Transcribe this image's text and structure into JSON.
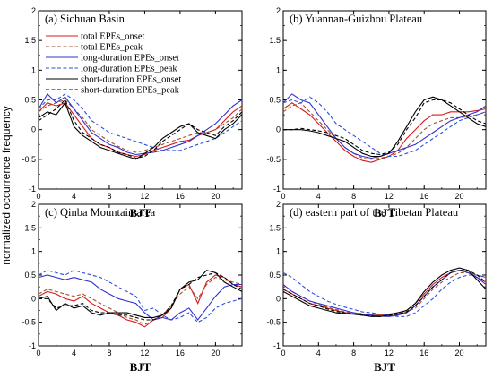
{
  "figure": {
    "ylabel": "normalized occurrence frequency"
  },
  "chart_data": [
    {
      "type": "line",
      "title": "(a) Sichuan Basin",
      "xlabel": "BJT",
      "ylabel": "normalized occurrence frequency",
      "xlim": [
        0,
        23
      ],
      "ylim": [
        -1,
        2
      ],
      "xticks": [
        0,
        4,
        8,
        12,
        16,
        20
      ],
      "yticks": [
        -1,
        -0.5,
        0,
        0.5,
        1,
        1.5,
        2
      ],
      "legend": "top-left",
      "x": [
        0,
        1,
        2,
        3,
        4,
        5,
        6,
        7,
        8,
        9,
        10,
        11,
        12,
        13,
        14,
        15,
        16,
        17,
        18,
        19,
        20,
        21,
        22,
        23
      ],
      "series": [
        {
          "name": "total EPEs_onset",
          "color": "#d7191c",
          "dash": "solid",
          "values": [
            0.3,
            0.45,
            0.4,
            0.45,
            0.25,
            0.05,
            -0.15,
            -0.25,
            -0.3,
            -0.38,
            -0.42,
            -0.45,
            -0.42,
            -0.35,
            -0.3,
            -0.25,
            -0.2,
            -0.18,
            -0.1,
            -0.05,
            0.0,
            0.15,
            0.3,
            0.4
          ]
        },
        {
          "name": "total EPEs_peak",
          "color": "#a0522d",
          "dash": "dash",
          "values": [
            0.3,
            0.4,
            0.45,
            0.5,
            0.35,
            0.2,
            0.0,
            -0.1,
            -0.2,
            -0.28,
            -0.35,
            -0.38,
            -0.35,
            -0.3,
            -0.25,
            -0.2,
            -0.15,
            -0.1,
            -0.05,
            -0.05,
            0.0,
            0.1,
            0.2,
            0.35
          ]
        },
        {
          "name": "long-duration EPEs_onset",
          "color": "#3030d0",
          "dash": "solid",
          "values": [
            0.35,
            0.6,
            0.45,
            0.55,
            0.35,
            0.15,
            -0.05,
            -0.15,
            -0.25,
            -0.3,
            -0.38,
            -0.42,
            -0.4,
            -0.38,
            -0.35,
            -0.3,
            -0.25,
            -0.2,
            -0.1,
            0.0,
            0.1,
            0.25,
            0.4,
            0.5
          ]
        },
        {
          "name": "long-duration EPEs_peak",
          "color": "#2b50d8",
          "dash": "dash",
          "values": [
            0.35,
            0.5,
            0.5,
            0.6,
            0.5,
            0.35,
            0.15,
            0.05,
            -0.05,
            -0.1,
            -0.15,
            -0.2,
            -0.25,
            -0.3,
            -0.35,
            -0.35,
            -0.35,
            -0.3,
            -0.25,
            -0.2,
            -0.15,
            -0.05,
            0.05,
            0.15
          ]
        },
        {
          "name": "short-duration EPEs_onset",
          "color": "#000000",
          "dash": "solid",
          "values": [
            0.2,
            0.3,
            0.25,
            0.45,
            0.05,
            -0.1,
            -0.2,
            -0.3,
            -0.35,
            -0.4,
            -0.45,
            -0.5,
            -0.4,
            -0.3,
            -0.15,
            -0.05,
            0.05,
            0.1,
            -0.05,
            -0.1,
            -0.15,
            0.0,
            0.1,
            0.25
          ]
        },
        {
          "name": "short-duration EPEs_peak",
          "color": "#000000",
          "dash": "dash",
          "values": [
            0.15,
            0.25,
            0.35,
            0.5,
            0.15,
            -0.05,
            -0.15,
            -0.25,
            -0.3,
            -0.38,
            -0.42,
            -0.48,
            -0.45,
            -0.35,
            -0.2,
            -0.1,
            0.0,
            0.1,
            0.0,
            -0.05,
            -0.1,
            0.05,
            0.15,
            0.3
          ]
        }
      ]
    },
    {
      "type": "line",
      "title": "(b) Yuannan-Guizhou Plateau",
      "xlabel": "BJT",
      "xlim": [
        0,
        23
      ],
      "ylim": [
        -1,
        2
      ],
      "xticks": [
        0,
        4,
        8,
        12,
        16,
        20
      ],
      "yticks": [
        -1,
        -0.5,
        0,
        0.5,
        1,
        1.5,
        2
      ],
      "x": [
        0,
        1,
        2,
        3,
        4,
        5,
        6,
        7,
        8,
        9,
        10,
        11,
        12,
        13,
        14,
        15,
        16,
        17,
        18,
        19,
        20,
        21,
        22,
        23
      ],
      "series": [
        {
          "name": "total EPEs_onset",
          "color": "#d7191c",
          "dash": "solid",
          "values": [
            0.35,
            0.45,
            0.35,
            0.25,
            0.1,
            -0.05,
            -0.2,
            -0.35,
            -0.45,
            -0.52,
            -0.55,
            -0.5,
            -0.45,
            -0.35,
            -0.15,
            0.0,
            0.15,
            0.25,
            0.25,
            0.3,
            0.3,
            0.3,
            0.32,
            0.35
          ]
        },
        {
          "name": "total EPEs_peak",
          "color": "#a0522d",
          "dash": "dash",
          "values": [
            0.3,
            0.4,
            0.45,
            0.3,
            0.15,
            0.0,
            -0.15,
            -0.3,
            -0.4,
            -0.48,
            -0.5,
            -0.48,
            -0.45,
            -0.4,
            -0.3,
            -0.15,
            0.0,
            0.1,
            0.15,
            0.2,
            0.2,
            0.22,
            0.25,
            0.3
          ]
        },
        {
          "name": "long-duration EPEs_onset",
          "color": "#3030d0",
          "dash": "solid",
          "values": [
            0.45,
            0.6,
            0.5,
            0.45,
            0.25,
            0.05,
            -0.15,
            -0.3,
            -0.4,
            -0.45,
            -0.48,
            -0.45,
            -0.4,
            -0.35,
            -0.3,
            -0.25,
            -0.15,
            -0.05,
            0.05,
            0.15,
            0.2,
            0.25,
            0.3,
            0.4
          ]
        },
        {
          "name": "long-duration EPEs_peak",
          "color": "#2b50d8",
          "dash": "dash",
          "values": [
            0.45,
            0.5,
            0.45,
            0.55,
            0.45,
            0.3,
            0.1,
            0.0,
            -0.1,
            -0.2,
            -0.3,
            -0.4,
            -0.45,
            -0.45,
            -0.4,
            -0.35,
            -0.25,
            -0.15,
            -0.05,
            0.05,
            0.15,
            0.2,
            0.25,
            0.3
          ]
        },
        {
          "name": "short-duration EPEs_onset",
          "color": "#000000",
          "dash": "solid",
          "values": [
            0.0,
            0.0,
            0.0,
            -0.02,
            -0.05,
            -0.1,
            -0.15,
            -0.2,
            -0.3,
            -0.4,
            -0.45,
            -0.45,
            -0.4,
            -0.2,
            0.05,
            0.3,
            0.5,
            0.55,
            0.5,
            0.4,
            0.3,
            0.2,
            0.1,
            0.05
          ]
        },
        {
          "name": "short-duration EPEs_peak",
          "color": "#000000",
          "dash": "dash",
          "values": [
            0.0,
            0.0,
            0.02,
            0.0,
            -0.02,
            -0.05,
            -0.1,
            -0.15,
            -0.25,
            -0.35,
            -0.4,
            -0.42,
            -0.38,
            -0.25,
            0.0,
            0.2,
            0.45,
            0.5,
            0.5,
            0.45,
            0.35,
            0.25,
            0.15,
            0.1
          ]
        }
      ]
    },
    {
      "type": "line",
      "title": "(c) Qinba Mountain area",
      "xlabel": "BJT",
      "ylabel": "normalized occurrence frequency",
      "xlim": [
        0,
        23
      ],
      "ylim": [
        -1,
        2
      ],
      "xticks": [
        0,
        4,
        8,
        12,
        16,
        20
      ],
      "yticks": [
        -1,
        -0.5,
        0,
        0.5,
        1,
        1.5,
        2
      ],
      "x": [
        0,
        1,
        2,
        3,
        4,
        5,
        6,
        7,
        8,
        9,
        10,
        11,
        12,
        13,
        14,
        15,
        16,
        17,
        18,
        19,
        20,
        21,
        22,
        23
      ],
      "series": [
        {
          "name": "total EPEs_onset",
          "color": "#d7191c",
          "dash": "solid",
          "values": [
            0.05,
            0.15,
            0.1,
            0.0,
            -0.05,
            0.05,
            -0.1,
            -0.2,
            -0.3,
            -0.35,
            -0.45,
            -0.5,
            -0.6,
            -0.45,
            -0.4,
            -0.2,
            0.2,
            0.3,
            -0.1,
            0.35,
            0.5,
            0.45,
            0.3,
            0.25
          ]
        },
        {
          "name": "total EPEs_peak",
          "color": "#a0522d",
          "dash": "dash",
          "values": [
            0.1,
            0.2,
            0.15,
            0.1,
            0.05,
            0.1,
            0.0,
            -0.1,
            -0.2,
            -0.3,
            -0.4,
            -0.45,
            -0.55,
            -0.45,
            -0.35,
            -0.15,
            0.1,
            0.25,
            0.0,
            0.3,
            0.45,
            0.4,
            0.35,
            0.3
          ]
        },
        {
          "name": "long-duration EPEs_onset",
          "color": "#3030d0",
          "dash": "solid",
          "values": [
            0.45,
            0.5,
            0.45,
            0.4,
            0.45,
            0.4,
            0.35,
            0.2,
            0.1,
            0.0,
            -0.05,
            -0.1,
            -0.3,
            -0.45,
            -0.4,
            -0.45,
            -0.3,
            -0.2,
            -0.45,
            -0.2,
            0.05,
            0.25,
            0.3,
            0.3
          ]
        },
        {
          "name": "long-duration EPEs_peak",
          "color": "#2b50d8",
          "dash": "dash",
          "values": [
            0.5,
            0.6,
            0.55,
            0.5,
            0.6,
            0.55,
            0.5,
            0.45,
            0.35,
            0.25,
            0.15,
            0.05,
            -0.25,
            -0.2,
            -0.35,
            -0.45,
            -0.4,
            -0.3,
            -0.5,
            -0.4,
            -0.2,
            -0.1,
            -0.05,
            0.0
          ]
        },
        {
          "name": "short-duration EPEs_onset",
          "color": "#000000",
          "dash": "solid",
          "values": [
            0.0,
            0.05,
            -0.25,
            -0.1,
            -0.2,
            -0.15,
            -0.3,
            -0.35,
            -0.3,
            -0.3,
            -0.3,
            -0.35,
            -0.4,
            -0.4,
            -0.35,
            -0.2,
            0.2,
            0.35,
            0.4,
            0.6,
            0.55,
            0.35,
            0.25,
            0.15
          ]
        },
        {
          "name": "short-duration EPEs_peak",
          "color": "#000000",
          "dash": "dash",
          "values": [
            0.0,
            0.0,
            -0.2,
            -0.15,
            -0.15,
            -0.1,
            -0.25,
            -0.3,
            -0.3,
            -0.35,
            -0.35,
            -0.4,
            -0.45,
            -0.45,
            -0.35,
            -0.15,
            0.2,
            0.3,
            0.45,
            0.5,
            0.55,
            0.45,
            0.3,
            0.2
          ]
        }
      ]
    },
    {
      "type": "line",
      "title": "(d) eastern part of the Tibetan Plateau",
      "xlabel": "BJT",
      "xlim": [
        0,
        23
      ],
      "ylim": [
        -1,
        2
      ],
      "xticks": [
        0,
        4,
        8,
        12,
        16,
        20
      ],
      "yticks": [
        -1,
        -0.5,
        0,
        0.5,
        1,
        1.5,
        2
      ],
      "x": [
        0,
        1,
        2,
        3,
        4,
        5,
        6,
        7,
        8,
        9,
        10,
        11,
        12,
        13,
        14,
        15,
        16,
        17,
        18,
        19,
        20,
        21,
        22,
        23
      ],
      "series": [
        {
          "name": "total EPEs_onset",
          "color": "#d7191c",
          "dash": "solid",
          "values": [
            0.2,
            0.1,
            0.0,
            -0.1,
            -0.15,
            -0.2,
            -0.25,
            -0.3,
            -0.32,
            -0.33,
            -0.35,
            -0.35,
            -0.33,
            -0.3,
            -0.25,
            -0.1,
            0.1,
            0.3,
            0.45,
            0.55,
            0.6,
            0.55,
            0.45,
            0.35
          ]
        },
        {
          "name": "total EPEs_peak",
          "color": "#a0522d",
          "dash": "dash",
          "values": [
            0.3,
            0.15,
            0.05,
            -0.05,
            -0.12,
            -0.18,
            -0.23,
            -0.28,
            -0.3,
            -0.32,
            -0.34,
            -0.35,
            -0.35,
            -0.32,
            -0.28,
            -0.2,
            0.0,
            0.2,
            0.35,
            0.45,
            0.55,
            0.55,
            0.5,
            0.45
          ]
        },
        {
          "name": "long-duration EPEs_onset",
          "color": "#3030d0",
          "dash": "solid",
          "values": [
            0.3,
            0.15,
            0.05,
            -0.05,
            -0.1,
            -0.15,
            -0.2,
            -0.25,
            -0.3,
            -0.33,
            -0.35,
            -0.37,
            -0.38,
            -0.35,
            -0.3,
            -0.15,
            0.05,
            0.25,
            0.4,
            0.55,
            0.6,
            0.55,
            0.45,
            0.3
          ]
        },
        {
          "name": "long-duration EPEs_peak",
          "color": "#2b50d8",
          "dash": "dash",
          "values": [
            0.55,
            0.45,
            0.3,
            0.15,
            0.05,
            -0.05,
            -0.12,
            -0.18,
            -0.23,
            -0.28,
            -0.3,
            -0.33,
            -0.35,
            -0.38,
            -0.38,
            -0.3,
            -0.15,
            0.0,
            0.2,
            0.35,
            0.45,
            0.5,
            0.5,
            0.45
          ]
        },
        {
          "name": "short-duration EPEs_onset",
          "color": "#000000",
          "dash": "solid",
          "values": [
            0.15,
            0.05,
            -0.05,
            -0.15,
            -0.2,
            -0.25,
            -0.3,
            -0.32,
            -0.33,
            -0.35,
            -0.38,
            -0.38,
            -0.35,
            -0.3,
            -0.25,
            -0.1,
            0.15,
            0.35,
            0.5,
            0.6,
            0.65,
            0.6,
            0.4,
            0.2
          ]
        },
        {
          "name": "short-duration EPEs_peak",
          "color": "#000000",
          "dash": "dash",
          "values": [
            0.2,
            0.1,
            0.0,
            -0.1,
            -0.15,
            -0.22,
            -0.27,
            -0.3,
            -0.33,
            -0.35,
            -0.37,
            -0.38,
            -0.36,
            -0.33,
            -0.28,
            -0.15,
            0.05,
            0.25,
            0.4,
            0.55,
            0.6,
            0.6,
            0.5,
            0.35
          ]
        }
      ]
    }
  ]
}
